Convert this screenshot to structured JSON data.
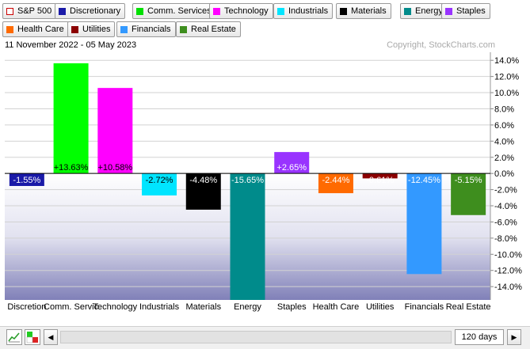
{
  "legend": {
    "row1": [
      {
        "label": "S&P 500",
        "color": "#ffffff",
        "outline": true
      },
      {
        "label": "Discretionary",
        "color": "#1a1aa8"
      },
      {
        "label": "Comm. Services",
        "color": "#00e000"
      },
      {
        "label": "Technology",
        "color": "#ff00ff"
      },
      {
        "label": "Industrials",
        "color": "#00e5ff"
      },
      {
        "label": "Materials",
        "color": "#000000"
      },
      {
        "label": "Energy",
        "color": "#008b8b"
      },
      {
        "label": "Staples",
        "color": "#9933ff"
      }
    ],
    "row2": [
      {
        "label": "Health Care",
        "color": "#ff6a00"
      },
      {
        "label": "Utilities",
        "color": "#8b0000"
      },
      {
        "label": "Financials",
        "color": "#3399ff"
      },
      {
        "label": "Real Estate",
        "color": "#3e8e1e"
      }
    ]
  },
  "header": {
    "date_range": "11 November 2022 - 05 May 2023",
    "copyright": "Copyright, StockCharts.com"
  },
  "chart_data": {
    "type": "bar",
    "categories": [
      "Discretionary",
      "Comm. Services",
      "Technology",
      "Industrials",
      "Materials",
      "Energy",
      "Staples",
      "Health Care",
      "Utilities",
      "Financials",
      "Real Estate"
    ],
    "category_tick_labels": [
      "Discretion",
      "Comm. Servic",
      "Technology",
      "Industrials",
      "Materials",
      "Energy",
      "Staples",
      "Health Care",
      "Utilities",
      "Financials",
      "Real Estate"
    ],
    "values": [
      -1.55,
      13.63,
      10.58,
      -2.72,
      -4.48,
      -15.65,
      2.65,
      -2.44,
      -0.61,
      -12.45,
      -5.15
    ],
    "value_labels": [
      "-1.55%",
      "+13.63%",
      "+10.58%",
      "-2.72%",
      "-4.48%",
      "-15.65%",
      "+2.65%",
      "-2.44%",
      "-0.61%",
      "-12.45%",
      "-5.15%"
    ],
    "colors": [
      "#1a1aa8",
      "#00ff00",
      "#ff00ff",
      "#00e5ff",
      "#000000",
      "#008b8b",
      "#9933ff",
      "#ff6a00",
      "#8b0000",
      "#3399ff",
      "#3e8e1e"
    ],
    "label_colors": [
      "#ffffff",
      "#000000",
      "#000000",
      "#000000",
      "#ffffff",
      "#ffffff",
      "#ffffff",
      "#ffffff",
      "#ffffff",
      "#ffffff",
      "#ffffff"
    ],
    "y_ticks": [
      14,
      12,
      10,
      8,
      6,
      4,
      2,
      0,
      -2,
      -4,
      -6,
      -8,
      -10,
      -12,
      -14
    ],
    "y_tick_labels": [
      "14.0%",
      "12.0%",
      "10.0%",
      "8.0%",
      "6.0%",
      "4.0%",
      "2.0%",
      "0.0%",
      "-2.0%",
      "-4.0%",
      "-6.0%",
      "-8.0%",
      "-10.0%",
      "-12.0%",
      "-14.0%"
    ],
    "ylim": [
      -15.65,
      15.0
    ],
    "grid": true,
    "title": "",
    "xlabel": "",
    "ylabel": ""
  },
  "controls": {
    "chart_type_icon": "line-chart-icon",
    "color_icon": "color-squares-icon",
    "scroll_left_icon": "◀",
    "scroll_right_icon": "▶",
    "period": "120 days"
  }
}
